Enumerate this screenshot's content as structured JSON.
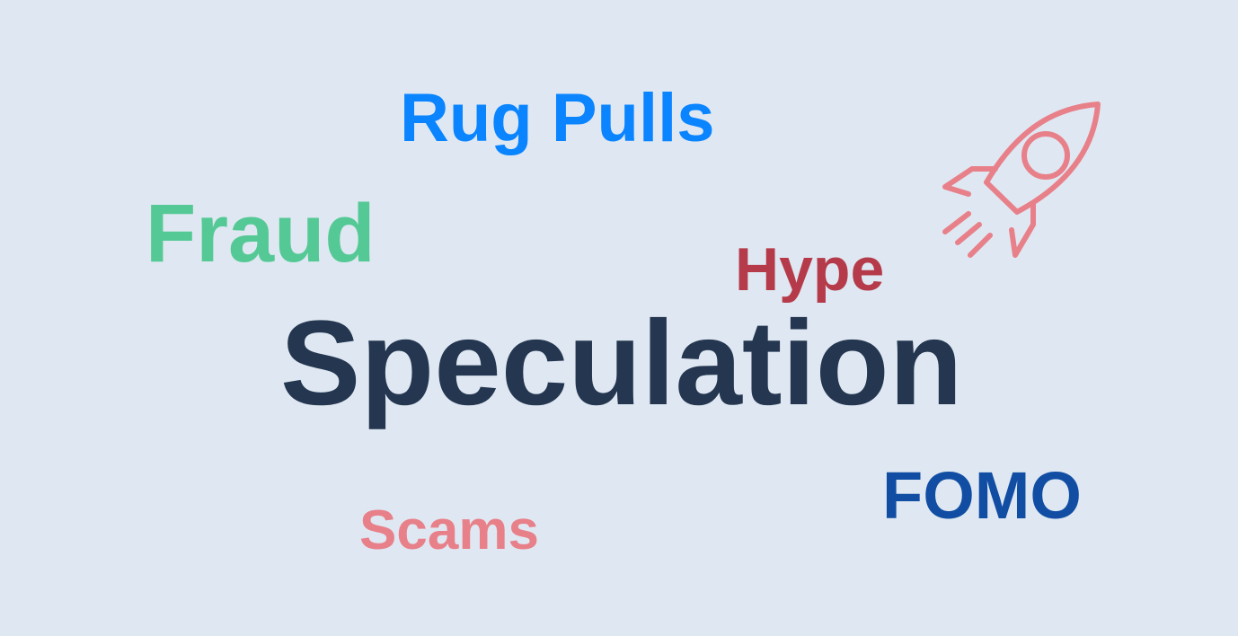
{
  "words": {
    "rug_pulls": {
      "text": "Rug Pulls",
      "color": "#0a84ff"
    },
    "fraud": {
      "text": "Fraud",
      "color": "#55c995"
    },
    "hype": {
      "text": "Hype",
      "color": "#b53b4a"
    },
    "speculation": {
      "text": "Speculation",
      "color": "#243650"
    },
    "fomo": {
      "text": "FOMO",
      "color": "#114ea3"
    },
    "scams": {
      "text": "Scams",
      "color": "#e8808a"
    }
  },
  "background_color": "#dfe8f2",
  "rocket": {
    "icon": "rocket-icon",
    "color": "#e8808a"
  }
}
